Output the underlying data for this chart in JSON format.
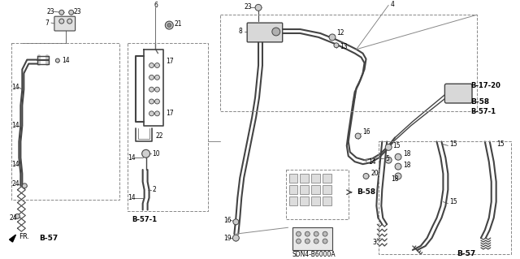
{
  "bg_color": "#f0f0f0",
  "line_color": "#444444",
  "text_color": "#000000",
  "figsize": [
    6.4,
    3.19
  ],
  "dpi": 100,
  "labels": {
    "FR": "FR.",
    "B57": "B-57",
    "B57_1": "B-57-1",
    "B58": "B-58",
    "B1720": "B-17-20",
    "SDN": "SDN4-B6000A"
  }
}
